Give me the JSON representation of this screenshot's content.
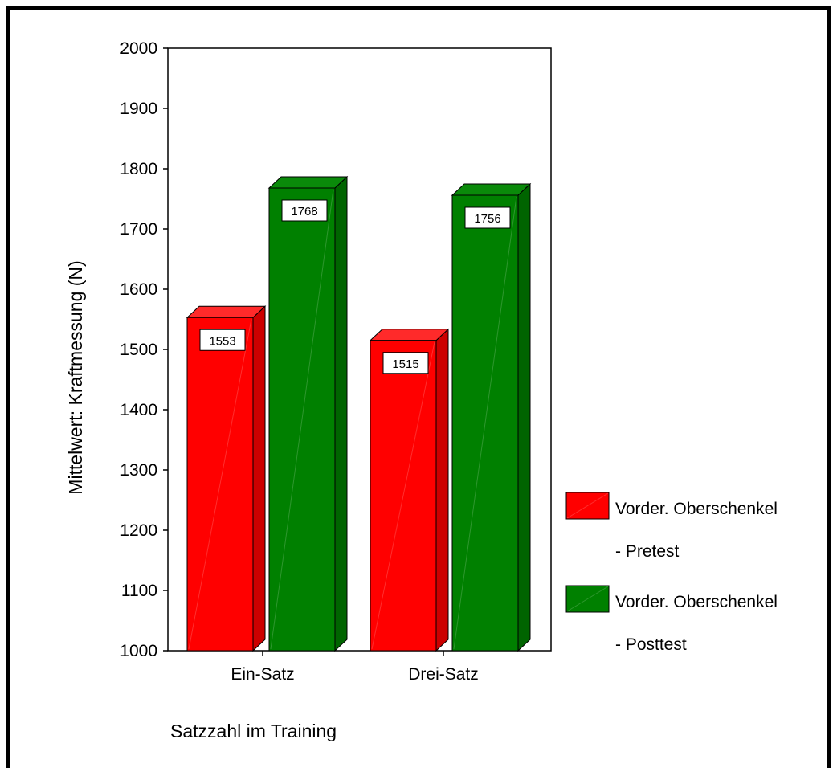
{
  "chart_data": {
    "type": "bar",
    "categories": [
      "Ein-Satz",
      "Drei-Satz"
    ],
    "series": [
      {
        "name": "Vorder. Oberschenkel - Pretest",
        "legend_line1": "Vorder. Oberschenkel",
        "legend_line2": "- Pretest",
        "color": "#ff0000",
        "side_color": "#cc0000",
        "top_color": "#ff2a2a",
        "values": [
          1553,
          1515
        ]
      },
      {
        "name": "Vorder. Oberschenkel - Posttest",
        "legend_line1": "Vorder. Oberschenkel",
        "legend_line2": "- Posttest",
        "color": "#008000",
        "side_color": "#006400",
        "top_color": "#0a8a0a",
        "values": [
          1768,
          1756
        ]
      }
    ],
    "xlabel": "Satzzahl im Training",
    "ylabel": "Mittelwert: Kraftmessung (N)",
    "ylim": [
      1000,
      2000
    ],
    "yticks": [
      1000,
      1100,
      1200,
      1300,
      1400,
      1500,
      1600,
      1700,
      1800,
      1900,
      2000
    ],
    "legend_position": "right",
    "data_labels": true,
    "style": "3d"
  }
}
